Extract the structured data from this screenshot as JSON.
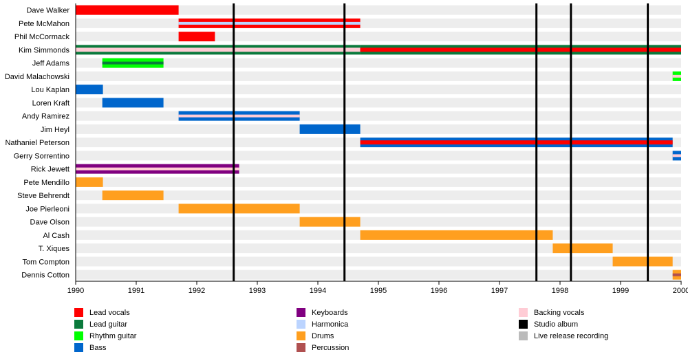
{
  "chart_data": {
    "type": "timeline",
    "title": "",
    "xlabel": "",
    "ylabel": "",
    "xlim": [
      1990,
      2000
    ],
    "x_ticks": [
      "1990",
      "1991",
      "1992",
      "1993",
      "1994",
      "1995",
      "1996",
      "1997",
      "1998",
      "1999",
      "2000"
    ],
    "colors": {
      "lead_vocals": "#ff0000",
      "lead_guitar": "#0a7a3c",
      "rhythm_guitar": "#00ff00",
      "bass": "#0066cc",
      "keyboards": "#800080",
      "harmonica": "#bbd4ff",
      "drums": "#ff9f1f",
      "percussion": "#b05050",
      "backing_vocals": "#ffccd5",
      "studio_album": "#000000",
      "live_release": "#bbbbbb"
    },
    "members": [
      {
        "name": "Dave Walker",
        "bars": [
          {
            "start": 1990.0,
            "end": 1991.7,
            "role": "lead_vocals"
          }
        ]
      },
      {
        "name": "Pete McMahon",
        "bars": [
          {
            "start": 1991.7,
            "end": 1994.7,
            "role": "lead_vocals",
            "inner": "harmonica"
          }
        ]
      },
      {
        "name": "Phil McCormack",
        "bars": [
          {
            "start": 1991.7,
            "end": 1992.3,
            "role": "lead_vocals"
          }
        ]
      },
      {
        "name": "Kim Simmonds",
        "bars": [
          {
            "start": 1990.0,
            "end": 1994.7,
            "role": "lead_guitar",
            "inner": "backing_vocals"
          },
          {
            "start": 1994.7,
            "end": 2000.0,
            "role": "lead_guitar",
            "inner": "lead_vocals"
          }
        ]
      },
      {
        "name": "Jeff Adams",
        "bars": [
          {
            "start": 1990.44,
            "end": 1991.45,
            "role": "rhythm_guitar",
            "inner": "lead_guitar"
          }
        ]
      },
      {
        "name": "David Malachowski",
        "bars": [
          {
            "start": 1999.86,
            "end": 2000.0,
            "role": "rhythm_guitar",
            "inner": "backing_vocals"
          }
        ]
      },
      {
        "name": "Lou Kaplan",
        "bars": [
          {
            "start": 1990.0,
            "end": 1990.45,
            "role": "bass"
          }
        ]
      },
      {
        "name": "Loren Kraft",
        "bars": [
          {
            "start": 1990.44,
            "end": 1991.45,
            "role": "bass"
          }
        ]
      },
      {
        "name": "Andy Ramirez",
        "bars": [
          {
            "start": 1991.7,
            "end": 1993.7,
            "role": "bass",
            "inner": "backing_vocals"
          }
        ]
      },
      {
        "name": "Jim Heyl",
        "bars": [
          {
            "start": 1993.7,
            "end": 1994.7,
            "role": "bass"
          }
        ]
      },
      {
        "name": "Nathaniel Peterson",
        "bars": [
          {
            "start": 1994.7,
            "end": 1999.86,
            "role": "bass",
            "inner": "lead_vocals"
          }
        ]
      },
      {
        "name": "Gerry Sorrentino",
        "bars": [
          {
            "start": 1999.86,
            "end": 2000.0,
            "role": "bass",
            "inner": "backing_vocals"
          }
        ]
      },
      {
        "name": "Rick Jewett",
        "bars": [
          {
            "start": 1990.0,
            "end": 1992.7,
            "role": "keyboards",
            "inner": "backing_vocals"
          }
        ]
      },
      {
        "name": "Pete Mendillo",
        "bars": [
          {
            "start": 1990.0,
            "end": 1990.45,
            "role": "drums"
          }
        ]
      },
      {
        "name": "Steve Behrendt",
        "bars": [
          {
            "start": 1990.44,
            "end": 1991.45,
            "role": "drums"
          }
        ]
      },
      {
        "name": "Joe Pierleoni",
        "bars": [
          {
            "start": 1991.7,
            "end": 1993.7,
            "role": "drums"
          }
        ]
      },
      {
        "name": "Dave Olson",
        "bars": [
          {
            "start": 1993.7,
            "end": 1994.7,
            "role": "drums"
          }
        ]
      },
      {
        "name": "Al Cash",
        "bars": [
          {
            "start": 1994.7,
            "end": 1997.88,
            "role": "drums"
          }
        ]
      },
      {
        "name": "T. Xiques",
        "bars": [
          {
            "start": 1997.88,
            "end": 1998.87,
            "role": "drums"
          }
        ]
      },
      {
        "name": "Tom Compton",
        "bars": [
          {
            "start": 1998.87,
            "end": 1999.86,
            "role": "drums"
          }
        ]
      },
      {
        "name": "Dennis Cotton",
        "bars": [
          {
            "start": 1999.86,
            "end": 2000.0,
            "role": "drums",
            "inner": "percussion"
          }
        ]
      }
    ],
    "studio_albums": [
      1992.61,
      1994.44,
      1997.61,
      1998.18,
      1999.45
    ],
    "legend": {
      "columns": [
        [
          {
            "key": "lead_vocals",
            "label": "Lead vocals"
          },
          {
            "key": "lead_guitar",
            "label": "Lead guitar"
          },
          {
            "key": "rhythm_guitar",
            "label": "Rhythm guitar"
          },
          {
            "key": "bass",
            "label": "Bass"
          }
        ],
        [
          {
            "key": "keyboards",
            "label": "Keyboards"
          },
          {
            "key": "harmonica",
            "label": "Harmonica"
          },
          {
            "key": "drums",
            "label": "Drums"
          },
          {
            "key": "percussion",
            "label": "Percussion"
          }
        ],
        [
          {
            "key": "backing_vocals",
            "label": "Backing vocals"
          },
          {
            "key": "studio_album",
            "label": "Studio album"
          },
          {
            "key": "live_release",
            "label": "Live release recording"
          }
        ]
      ],
      "placement": "bottom"
    }
  }
}
